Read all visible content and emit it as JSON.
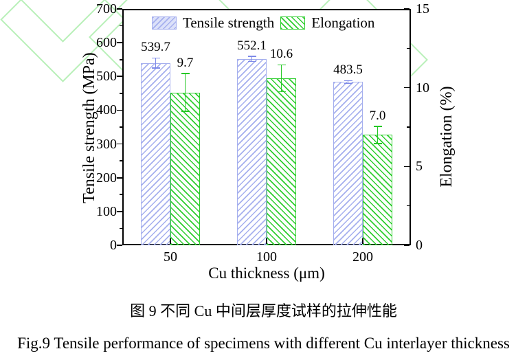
{
  "chart_data": {
    "type": "bar",
    "categories": [
      "50",
      "100",
      "200"
    ],
    "series": [
      {
        "name": "Tensile strength",
        "axis": "left",
        "values": [
          539.7,
          552.1,
          483.5
        ],
        "errors": [
          15,
          8,
          4
        ],
        "value_labels": [
          "539.7",
          "552.1",
          "483.5"
        ],
        "color": "#a5afee",
        "error_color": "#7e8ae8",
        "legend_fill": "#dce1f9",
        "hatch": "/"
      },
      {
        "name": "Elongation",
        "axis": "right",
        "values": [
          9.7,
          10.6,
          7.0
        ],
        "errors": [
          1.2,
          0.85,
          0.55
        ],
        "value_labels": [
          "9.7",
          "10.6",
          "7.0"
        ],
        "color": "#2fce2f",
        "error_color": "#25c825",
        "legend_fill": "#ffffff",
        "hatch": "\\"
      }
    ],
    "left_axis": {
      "label": "Tensile strength (MPa)",
      "min": 0,
      "max": 700,
      "major": 100,
      "minor": 50
    },
    "right_axis": {
      "label": "Elongation (%)",
      "min": 0,
      "max": 15,
      "major": 5,
      "minor": 2.5
    },
    "xlabel": "Cu thickness (μm)",
    "legend_position": "top-inside",
    "grid": false,
    "frame_color": "#000000",
    "watermark_color": "#b9f0b9"
  },
  "captions": {
    "chinese": "图 9  不同 Cu 中间层厚度试样的拉伸性能",
    "english": "Fig.9 Tensile performance of specimens with different Cu interlayer thickness"
  }
}
